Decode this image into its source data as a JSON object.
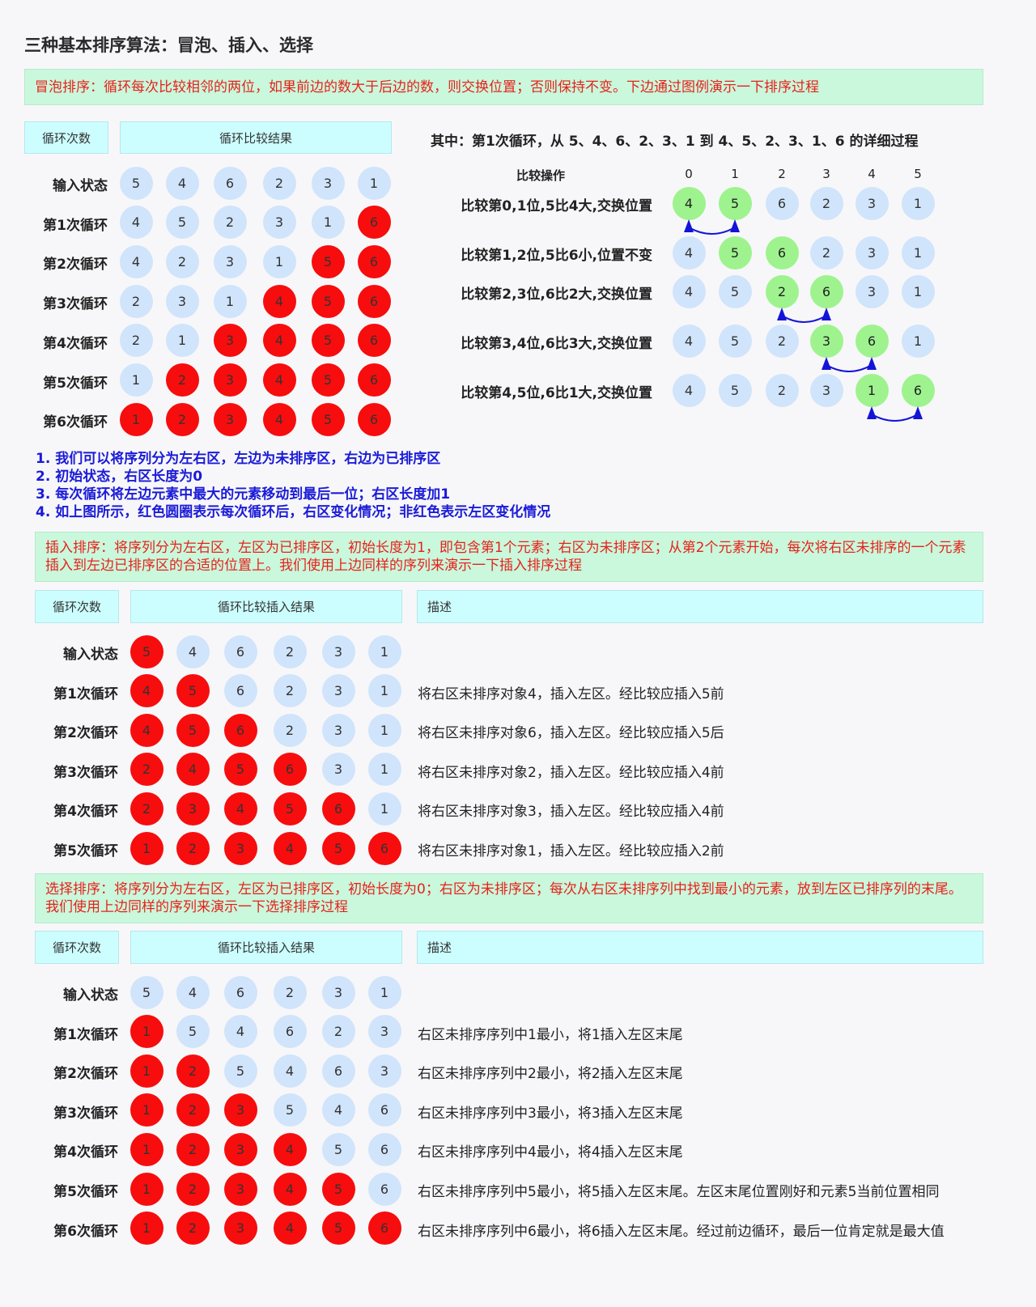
{
  "title": "三种基本排序算法：冒泡、插入、选择",
  "bubble": {
    "intro": "冒泡排序：循环每次比较相邻的两位，如果前边的数大于后边的数，则交换位置；否则保持不变。下边通过图例演示一下排序过程",
    "header_loop": "循环次数",
    "header_result": "循环比较结果",
    "rows": [
      {
        "label": "输入状态",
        "values": [
          5,
          4,
          6,
          2,
          3,
          1
        ],
        "red": [
          false,
          false,
          false,
          false,
          false,
          false
        ]
      },
      {
        "label": "第1次循环",
        "values": [
          4,
          5,
          2,
          3,
          1,
          6
        ],
        "red": [
          false,
          false,
          false,
          false,
          false,
          true
        ]
      },
      {
        "label": "第2次循环",
        "values": [
          4,
          2,
          3,
          1,
          5,
          6
        ],
        "red": [
          false,
          false,
          false,
          false,
          true,
          true
        ]
      },
      {
        "label": "第3次循环",
        "values": [
          2,
          3,
          1,
          4,
          5,
          6
        ],
        "red": [
          false,
          false,
          false,
          true,
          true,
          true
        ]
      },
      {
        "label": "第4次循环",
        "values": [
          2,
          1,
          3,
          4,
          5,
          6
        ],
        "red": [
          false,
          false,
          true,
          true,
          true,
          true
        ]
      },
      {
        "label": "第5次循环",
        "values": [
          1,
          2,
          3,
          4,
          5,
          6
        ],
        "red": [
          false,
          true,
          true,
          true,
          true,
          true
        ]
      },
      {
        "label": "第6次循环",
        "values": [
          1,
          2,
          3,
          4,
          5,
          6
        ],
        "red": [
          true,
          true,
          true,
          true,
          true,
          true
        ]
      }
    ],
    "detail_title": "其中：第1次循环，从 5、4、6、2、3、1 到 4、5、2、3、1、6 的详细过程",
    "op_header": "比较操作",
    "indices": [
      "0",
      "1",
      "2",
      "3",
      "4",
      "5"
    ],
    "steps": [
      {
        "label": "比较第0,1位,5比4大,交换位置",
        "values": [
          4,
          5,
          6,
          2,
          3,
          1
        ],
        "green": [
          0,
          1
        ],
        "swap": true
      },
      {
        "label": "比较第1,2位,5比6小,位置不变",
        "values": [
          4,
          5,
          6,
          2,
          3,
          1
        ],
        "green": [
          1,
          2
        ],
        "swap": false
      },
      {
        "label": "比较第2,3位,6比2大,交换位置",
        "values": [
          4,
          5,
          2,
          6,
          3,
          1
        ],
        "green": [
          2,
          3
        ],
        "swap": true
      },
      {
        "label": "比较第3,4位,6比3大,交换位置",
        "values": [
          4,
          5,
          2,
          3,
          6,
          1
        ],
        "green": [
          3,
          4
        ],
        "swap": true
      },
      {
        "label": "比较第4,5位,6比1大,交换位置",
        "values": [
          4,
          5,
          2,
          3,
          1,
          6
        ],
        "green": [
          4,
          5
        ],
        "swap": true
      }
    ],
    "notes": [
      "1. 我们可以将序列分为左右区，左边为未排序区，右边为已排序区",
      "2. 初始状态，右区长度为0",
      "3. 每次循环将左边元素中最大的元素移动到最后一位；右区长度加1",
      "4. 如上图所示，红色圆圈表示每次循环后，右区变化情况；非红色表示左区变化情况"
    ]
  },
  "insertion": {
    "intro": "插入排序：将序列分为左右区，左区为已排序区，初始长度为1，即包含第1个元素；右区为未排序区；从第2个元素开始，每次将右区未排序的一个元素插入到左边已排序区的合适的位置上。我们使用上边同样的序列来演示一下插入排序过程",
    "header_loop": "循环次数",
    "header_result": "循环比较插入结果",
    "header_desc": "描述",
    "rows": [
      {
        "label": "输入状态",
        "values": [
          5,
          4,
          6,
          2,
          3,
          1
        ],
        "red": [
          true,
          false,
          false,
          false,
          false,
          false
        ],
        "desc": ""
      },
      {
        "label": "第1次循环",
        "values": [
          4,
          5,
          6,
          2,
          3,
          1
        ],
        "red": [
          true,
          true,
          false,
          false,
          false,
          false
        ],
        "desc": "将右区未排序对象4，插入左区。经比较应插入5前"
      },
      {
        "label": "第2次循环",
        "values": [
          4,
          5,
          6,
          2,
          3,
          1
        ],
        "red": [
          true,
          true,
          true,
          false,
          false,
          false
        ],
        "desc": "将右区未排序对象6，插入左区。经比较应插入5后"
      },
      {
        "label": "第3次循环",
        "values": [
          2,
          4,
          5,
          6,
          3,
          1
        ],
        "red": [
          true,
          true,
          true,
          true,
          false,
          false
        ],
        "desc": "将右区未排序对象2，插入左区。经比较应插入4前"
      },
      {
        "label": "第4次循环",
        "values": [
          2,
          3,
          4,
          5,
          6,
          1
        ],
        "red": [
          true,
          true,
          true,
          true,
          true,
          false
        ],
        "desc": "将右区未排序对象3，插入左区。经比较应插入4前"
      },
      {
        "label": "第5次循环",
        "values": [
          1,
          2,
          3,
          4,
          5,
          6
        ],
        "red": [
          true,
          true,
          true,
          true,
          true,
          true
        ],
        "desc": "将右区未排序对象1，插入左区。经比较应插入2前"
      }
    ]
  },
  "selection": {
    "intro": "选择排序：将序列分为左右区，左区为已排序区，初始长度为0；右区为未排序区；每次从右区未排序列中找到最小的元素，放到左区已排序列的末尾。我们使用上边同样的序列来演示一下选择排序过程",
    "header_loop": "循环次数",
    "header_result": "循环比较插入结果",
    "header_desc": "描述",
    "rows": [
      {
        "label": "输入状态",
        "values": [
          5,
          4,
          6,
          2,
          3,
          1
        ],
        "red": [
          false,
          false,
          false,
          false,
          false,
          false
        ],
        "desc": ""
      },
      {
        "label": "第1次循环",
        "values": [
          1,
          5,
          4,
          6,
          2,
          3
        ],
        "red": [
          true,
          false,
          false,
          false,
          false,
          false
        ],
        "desc": "右区未排序序列中1最小，将1插入左区末尾"
      },
      {
        "label": "第2次循环",
        "values": [
          1,
          2,
          5,
          4,
          6,
          3
        ],
        "red": [
          true,
          true,
          false,
          false,
          false,
          false
        ],
        "desc": "右区未排序序列中2最小，将2插入左区末尾"
      },
      {
        "label": "第3次循环",
        "values": [
          1,
          2,
          3,
          5,
          4,
          6
        ],
        "red": [
          true,
          true,
          true,
          false,
          false,
          false
        ],
        "desc": "右区未排序序列中3最小，将3插入左区末尾"
      },
      {
        "label": "第4次循环",
        "values": [
          1,
          2,
          3,
          4,
          5,
          6
        ],
        "red": [
          true,
          true,
          true,
          true,
          false,
          false
        ],
        "desc": "右区未排序序列中4最小，将4插入左区末尾"
      },
      {
        "label": "第5次循环",
        "values": [
          1,
          2,
          3,
          4,
          5,
          6
        ],
        "red": [
          true,
          true,
          true,
          true,
          true,
          false
        ],
        "desc": "右区未排序序列中5最小，将5插入左区末尾。左区末尾位置刚好和元素5当前位置相同"
      },
      {
        "label": "第6次循环",
        "values": [
          1,
          2,
          3,
          4,
          5,
          6
        ],
        "red": [
          true,
          true,
          true,
          true,
          true,
          true
        ],
        "desc": "右区未排序序列中6最小，将6插入左区末尾。经过前边循环，最后一位肯定就是最大值"
      }
    ]
  },
  "colors": {
    "circle_default": "#d0e4fb",
    "circle_red": "#f70d0d",
    "circle_green": "#9ef38e",
    "arrow": "#1414d8",
    "note_bg": "#c9f8dc",
    "header_bg": "#ccfeff",
    "note_text": "#e8211a",
    "blue_text": "#1b1bd8"
  }
}
